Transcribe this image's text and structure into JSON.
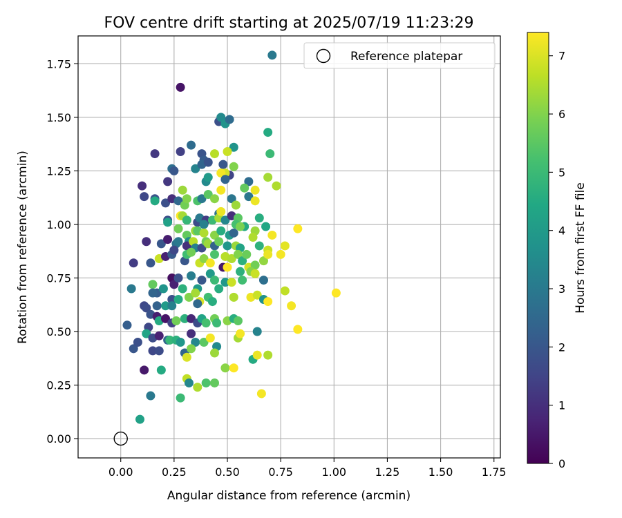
{
  "chart_data": {
    "type": "scatter",
    "title": "FOV centre drift starting at 2025/07/19 11:23:29",
    "xlabel": "Angular distance from reference (arcmin)",
    "ylabel": "Rotation from reference (arcmin)",
    "xlim": [
      -0.2,
      1.78
    ],
    "ylim": [
      -0.09,
      1.88
    ],
    "xticks": [
      0.0,
      0.25,
      0.5,
      0.75,
      1.0,
      1.25,
      1.5,
      1.75
    ],
    "xtick_labels": [
      "0.00",
      "0.25",
      "0.50",
      "0.75",
      "1.00",
      "1.25",
      "1.50",
      "1.75"
    ],
    "yticks": [
      0.0,
      0.25,
      0.5,
      0.75,
      1.0,
      1.25,
      1.5,
      1.75
    ],
    "ytick_labels": [
      "0.00",
      "0.25",
      "0.50",
      "0.75",
      "1.00",
      "1.25",
      "1.50",
      "1.75"
    ],
    "grid": true,
    "legend": {
      "position": "top-right",
      "label": "Reference platepar"
    },
    "reference_point": {
      "x": 0.0,
      "y": 0.0
    },
    "colorbar": {
      "label": "Hours from first FF file",
      "colormap": "viridis",
      "range": [
        0,
        7.4
      ],
      "ticks": [
        0,
        1,
        2,
        3,
        4,
        5,
        6,
        7
      ],
      "tick_labels": [
        "0",
        "1",
        "2",
        "3",
        "4",
        "5",
        "6",
        "7"
      ]
    },
    "points": [
      [
        0.71,
        1.79,
        3.0
      ],
      [
        0.28,
        1.64,
        0.4
      ],
      [
        0.46,
        1.48,
        1.8
      ],
      [
        0.47,
        1.5,
        3.5
      ],
      [
        0.49,
        1.47,
        3.8
      ],
      [
        0.51,
        1.49,
        2.6
      ],
      [
        0.69,
        1.43,
        4.5
      ],
      [
        0.16,
        1.33,
        1.2
      ],
      [
        0.28,
        1.34,
        1.4
      ],
      [
        0.33,
        1.37,
        2.6
      ],
      [
        0.38,
        1.33,
        1.9
      ],
      [
        0.44,
        1.33,
        6.6
      ],
      [
        0.53,
        1.36,
        3.8
      ],
      [
        0.5,
        1.34,
        6.8
      ],
      [
        0.7,
        1.33,
        5.0
      ],
      [
        0.39,
        1.3,
        2.1
      ],
      [
        0.24,
        1.26,
        2.7
      ],
      [
        0.25,
        1.25,
        2.0
      ],
      [
        0.35,
        1.26,
        3.3
      ],
      [
        0.38,
        1.28,
        2.4
      ],
      [
        0.41,
        1.29,
        1.9
      ],
      [
        0.48,
        1.28,
        2.0
      ],
      [
        0.51,
        1.23,
        1.5
      ],
      [
        0.49,
        1.24,
        6.9
      ],
      [
        0.53,
        1.27,
        6.0
      ],
      [
        0.1,
        1.18,
        1.0
      ],
      [
        0.22,
        1.2,
        1.2
      ],
      [
        0.29,
        1.16,
        6.3
      ],
      [
        0.4,
        1.2,
        3.5
      ],
      [
        0.41,
        1.22,
        4.0
      ],
      [
        0.47,
        1.24,
        7.3
      ],
      [
        0.49,
        1.21,
        2.4
      ],
      [
        0.6,
        1.2,
        2.6
      ],
      [
        0.58,
        1.17,
        5.6
      ],
      [
        0.63,
        1.16,
        7.2
      ],
      [
        0.69,
        1.22,
        6.4
      ],
      [
        0.73,
        1.18,
        6.5
      ],
      [
        0.11,
        1.13,
        1.6
      ],
      [
        0.16,
        1.12,
        1.9
      ],
      [
        0.16,
        1.11,
        4.5
      ],
      [
        0.21,
        1.1,
        1.8
      ],
      [
        0.24,
        1.12,
        1.0
      ],
      [
        0.27,
        1.11,
        2.5
      ],
      [
        0.3,
        1.09,
        5.8
      ],
      [
        0.31,
        1.12,
        6.0
      ],
      [
        0.36,
        1.11,
        5.3
      ],
      [
        0.38,
        1.12,
        3.0
      ],
      [
        0.41,
        1.14,
        5.5
      ],
      [
        0.44,
        1.12,
        6.1
      ],
      [
        0.47,
        1.16,
        7.3
      ],
      [
        0.52,
        1.12,
        2.9
      ],
      [
        0.54,
        1.09,
        6.3
      ],
      [
        0.6,
        1.13,
        2.9
      ],
      [
        0.63,
        1.11,
        7.2
      ],
      [
        0.22,
        1.02,
        1.8
      ],
      [
        0.22,
        1.01,
        4.2
      ],
      [
        0.28,
        1.04,
        7.4
      ],
      [
        0.29,
        1.04,
        6.4
      ],
      [
        0.31,
        1.02,
        4.9
      ],
      [
        0.36,
        1.01,
        1.7
      ],
      [
        0.37,
        1.03,
        3.0
      ],
      [
        0.4,
        1.02,
        1.3
      ],
      [
        0.39,
        1.0,
        3.2
      ],
      [
        0.43,
        1.02,
        5.0
      ],
      [
        0.46,
        1.05,
        2.8
      ],
      [
        0.46,
        1.03,
        6.4
      ],
      [
        0.47,
        1.06,
        7.2
      ],
      [
        0.49,
        1.02,
        3.4
      ],
      [
        0.52,
        1.04,
        1.0
      ],
      [
        0.55,
        1.03,
        5.5
      ],
      [
        0.54,
        1.0,
        5.2
      ],
      [
        0.58,
        0.99,
        4.5
      ],
      [
        0.65,
        1.03,
        4.6
      ],
      [
        0.68,
        0.99,
        4.4
      ],
      [
        0.27,
        0.98,
        5.8
      ],
      [
        0.31,
        0.95,
        5.6
      ],
      [
        0.32,
        0.92,
        3.5
      ],
      [
        0.35,
        0.97,
        6.3
      ],
      [
        0.36,
        0.97,
        5.5
      ],
      [
        0.39,
        0.96,
        6.5
      ],
      [
        0.44,
        0.95,
        6.1
      ],
      [
        0.47,
        0.97,
        4.6
      ],
      [
        0.51,
        0.95,
        4.0
      ],
      [
        0.53,
        0.96,
        2.4
      ],
      [
        0.56,
        0.99,
        5.9
      ],
      [
        0.63,
        0.97,
        6.3
      ],
      [
        0.71,
        0.95,
        7.3
      ],
      [
        0.83,
        0.98,
        7.4
      ],
      [
        0.12,
        0.92,
        1.0
      ],
      [
        0.19,
        0.91,
        2.0
      ],
      [
        0.22,
        0.93,
        0.6
      ],
      [
        0.26,
        0.91,
        2.8
      ],
      [
        0.27,
        0.92,
        3.0
      ],
      [
        0.31,
        0.9,
        1.0
      ],
      [
        0.34,
        0.92,
        6.6
      ],
      [
        0.35,
        0.89,
        3.2
      ],
      [
        0.38,
        0.89,
        1.7
      ],
      [
        0.4,
        0.92,
        5.8
      ],
      [
        0.41,
        0.91,
        6.3
      ],
      [
        0.44,
        0.9,
        2.3
      ],
      [
        0.46,
        0.92,
        5.7
      ],
      [
        0.5,
        0.9,
        3.9
      ],
      [
        0.54,
        0.9,
        6.3
      ],
      [
        0.56,
        0.89,
        4.3
      ],
      [
        0.62,
        0.94,
        6.5
      ],
      [
        0.65,
        0.9,
        4.7
      ],
      [
        0.69,
        0.88,
        6.8
      ],
      [
        0.77,
        0.9,
        7.1
      ],
      [
        0.06,
        0.82,
        1.3
      ],
      [
        0.14,
        0.82,
        2.0
      ],
      [
        0.18,
        0.84,
        6.8
      ],
      [
        0.21,
        0.85,
        0.7
      ],
      [
        0.24,
        0.86,
        2.1
      ],
      [
        0.25,
        0.88,
        1.6
      ],
      [
        0.3,
        0.83,
        2.0
      ],
      [
        0.31,
        0.86,
        5.1
      ],
      [
        0.33,
        0.87,
        5.8
      ],
      [
        0.37,
        0.82,
        6.8
      ],
      [
        0.39,
        0.84,
        6.1
      ],
      [
        0.42,
        0.82,
        7.3
      ],
      [
        0.44,
        0.86,
        5.3
      ],
      [
        0.48,
        0.8,
        0.5
      ],
      [
        0.49,
        0.85,
        6.6
      ],
      [
        0.5,
        0.8,
        7.4
      ],
      [
        0.52,
        0.84,
        6.5
      ],
      [
        0.55,
        0.86,
        6.0
      ],
      [
        0.57,
        0.83,
        4.7
      ],
      [
        0.59,
        0.86,
        5.7
      ],
      [
        0.6,
        0.8,
        6.9
      ],
      [
        0.63,
        0.81,
        5.8
      ],
      [
        0.67,
        0.83,
        6.2
      ],
      [
        0.69,
        0.86,
        7.2
      ],
      [
        0.75,
        0.86,
        7.3
      ],
      [
        0.05,
        0.7,
        3.0
      ],
      [
        0.15,
        0.72,
        5.6
      ],
      [
        0.17,
        0.68,
        2.2
      ],
      [
        0.2,
        0.7,
        3.8
      ],
      [
        0.24,
        0.75,
        0.3
      ],
      [
        0.25,
        0.72,
        0.7
      ],
      [
        0.27,
        0.75,
        1.8
      ],
      [
        0.29,
        0.7,
        4.7
      ],
      [
        0.33,
        0.76,
        3.1
      ],
      [
        0.36,
        0.7,
        4.0
      ],
      [
        0.38,
        0.74,
        2.0
      ],
      [
        0.42,
        0.77,
        4.0
      ],
      [
        0.44,
        0.74,
        5.0
      ],
      [
        0.49,
        0.73,
        3.9
      ],
      [
        0.52,
        0.73,
        6.8
      ],
      [
        0.56,
        0.78,
        4.7
      ],
      [
        0.57,
        0.74,
        5.1
      ],
      [
        0.61,
        0.78,
        6.1
      ],
      [
        0.63,
        0.77,
        6.8
      ],
      [
        0.67,
        0.74,
        2.7
      ],
      [
        0.77,
        0.69,
        6.7
      ],
      [
        1.01,
        0.68,
        7.4
      ],
      [
        0.11,
        0.62,
        1.6
      ],
      [
        0.12,
        0.61,
        1.7
      ],
      [
        0.15,
        0.68,
        2.4
      ],
      [
        0.17,
        0.62,
        2.3
      ],
      [
        0.21,
        0.62,
        4.0
      ],
      [
        0.24,
        0.65,
        1.8
      ],
      [
        0.27,
        0.65,
        4.5
      ],
      [
        0.32,
        0.66,
        6.0
      ],
      [
        0.35,
        0.68,
        6.4
      ],
      [
        0.37,
        0.64,
        7.0
      ],
      [
        0.41,
        0.66,
        5.1
      ],
      [
        0.43,
        0.64,
        4.6
      ],
      [
        0.46,
        0.7,
        4.6
      ],
      [
        0.53,
        0.66,
        6.5
      ],
      [
        0.61,
        0.66,
        7.2
      ],
      [
        0.64,
        0.67,
        6.8
      ],
      [
        0.67,
        0.65,
        3.7
      ],
      [
        0.69,
        0.64,
        7.4
      ],
      [
        0.8,
        0.62,
        7.3
      ],
      [
        0.13,
        0.52,
        1.6
      ],
      [
        0.14,
        0.58,
        1.9
      ],
      [
        0.17,
        0.57,
        0.6
      ],
      [
        0.18,
        0.55,
        4.5
      ],
      [
        0.21,
        0.56,
        0.4
      ],
      [
        0.24,
        0.54,
        1.4
      ],
      [
        0.26,
        0.55,
        5.8
      ],
      [
        0.3,
        0.56,
        4.7
      ],
      [
        0.33,
        0.56,
        0.8
      ],
      [
        0.36,
        0.54,
        1.7
      ],
      [
        0.38,
        0.56,
        4.3
      ],
      [
        0.4,
        0.54,
        5.2
      ],
      [
        0.44,
        0.56,
        5.8
      ],
      [
        0.45,
        0.54,
        5.0
      ],
      [
        0.5,
        0.55,
        6.1
      ],
      [
        0.53,
        0.56,
        4.6
      ],
      [
        0.55,
        0.55,
        5.5
      ],
      [
        0.03,
        0.53,
        2.2
      ],
      [
        0.12,
        0.49,
        4.3
      ],
      [
        0.15,
        0.47,
        1.7
      ],
      [
        0.18,
        0.48,
        0.7
      ],
      [
        0.22,
        0.46,
        2.4
      ],
      [
        0.23,
        0.46,
        4.9
      ],
      [
        0.26,
        0.46,
        4.7
      ],
      [
        0.28,
        0.45,
        3.9
      ],
      [
        0.33,
        0.49,
        1.0
      ],
      [
        0.35,
        0.45,
        3.4
      ],
      [
        0.39,
        0.45,
        5.5
      ],
      [
        0.42,
        0.47,
        7.3
      ],
      [
        0.45,
        0.43,
        3.5
      ],
      [
        0.55,
        0.47,
        6.4
      ],
      [
        0.56,
        0.49,
        7.3
      ],
      [
        0.64,
        0.5,
        3.3
      ],
      [
        0.83,
        0.51,
        7.4
      ],
      [
        0.06,
        0.42,
        2.0
      ],
      [
        0.08,
        0.45,
        1.8
      ],
      [
        0.11,
        0.32,
        0.5
      ],
      [
        0.15,
        0.41,
        1.6
      ],
      [
        0.18,
        0.41,
        1.7
      ],
      [
        0.3,
        0.4,
        2.4
      ],
      [
        0.31,
        0.38,
        7.0
      ],
      [
        0.33,
        0.42,
        6.0
      ],
      [
        0.44,
        0.4,
        6.3
      ],
      [
        0.49,
        0.33,
        6.1
      ],
      [
        0.53,
        0.33,
        7.4
      ],
      [
        0.62,
        0.37,
        4.5
      ],
      [
        0.64,
        0.39,
        7.2
      ],
      [
        0.69,
        0.39,
        6.5
      ],
      [
        0.09,
        0.09,
        4.2
      ],
      [
        0.14,
        0.2,
        3.0
      ],
      [
        0.19,
        0.32,
        4.5
      ],
      [
        0.28,
        0.19,
        5.0
      ],
      [
        0.31,
        0.28,
        6.7
      ],
      [
        0.32,
        0.26,
        3.4
      ],
      [
        0.36,
        0.24,
        6.5
      ],
      [
        0.4,
        0.26,
        5.3
      ],
      [
        0.44,
        0.26,
        5.6
      ],
      [
        0.66,
        0.21,
        7.3
      ],
      [
        0.24,
        0.62,
        3.2
      ],
      [
        0.36,
        0.63,
        2.5
      ]
    ]
  }
}
